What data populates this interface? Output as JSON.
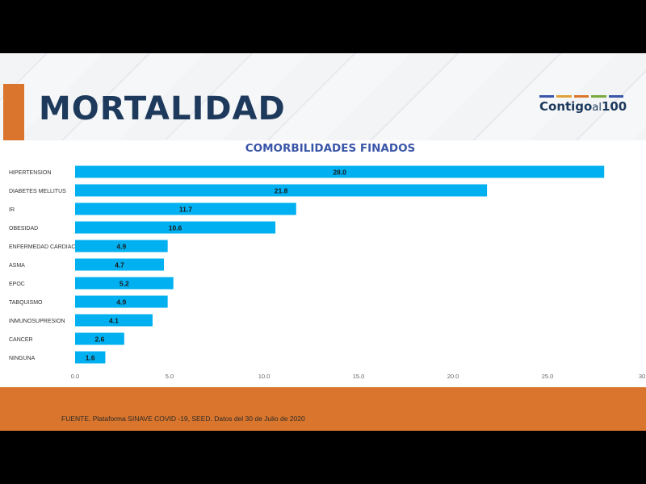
{
  "slide": {
    "title": "MORTALIDAD",
    "logo": {
      "text_main": "Contigo",
      "text_al": "al",
      "text_num": "100",
      "stripe_colors": [
        "#3a56a8",
        "#e2a13a",
        "#d9752c",
        "#7aaa3c",
        "#3a56a8"
      ]
    },
    "source": "FUENTE. Plataforma SINAVE COVID -19, SEED. Datos del 30 de Julio de 2020"
  },
  "colors": {
    "bar": "#00b0f0",
    "title": "#1d3a5c",
    "accent": "#d9752c",
    "chart_title": "#3a56a8"
  },
  "chart_data": {
    "type": "bar",
    "orientation": "horizontal",
    "title": "COMORBILIDADES FINADOS",
    "categories": [
      "HIPERTENSION",
      "DIABETES MELLITUS",
      "IR",
      "OBESIDAD",
      "ENFERMEDAD CARDIACA",
      "ASMA",
      "EPOC",
      "TABQUISMO",
      "INMUNOSUPRESION",
      "CANCER",
      "NINGUNA"
    ],
    "values": [
      28.0,
      21.8,
      11.7,
      10.6,
      4.9,
      4.7,
      5.2,
      4.9,
      4.1,
      2.6,
      1.6
    ],
    "value_labels": [
      "28.0",
      "21.8",
      "11.7",
      "10.6",
      "4.9",
      "4.7",
      "5.2",
      "4.9",
      "4.1",
      "2.6",
      "1.6"
    ],
    "xlim": [
      0,
      30
    ],
    "xticks": [
      "0.0",
      "5.0",
      "10.0",
      "15.0",
      "20.0",
      "25.0",
      "30"
    ],
    "grid": false,
    "legend": "none"
  }
}
